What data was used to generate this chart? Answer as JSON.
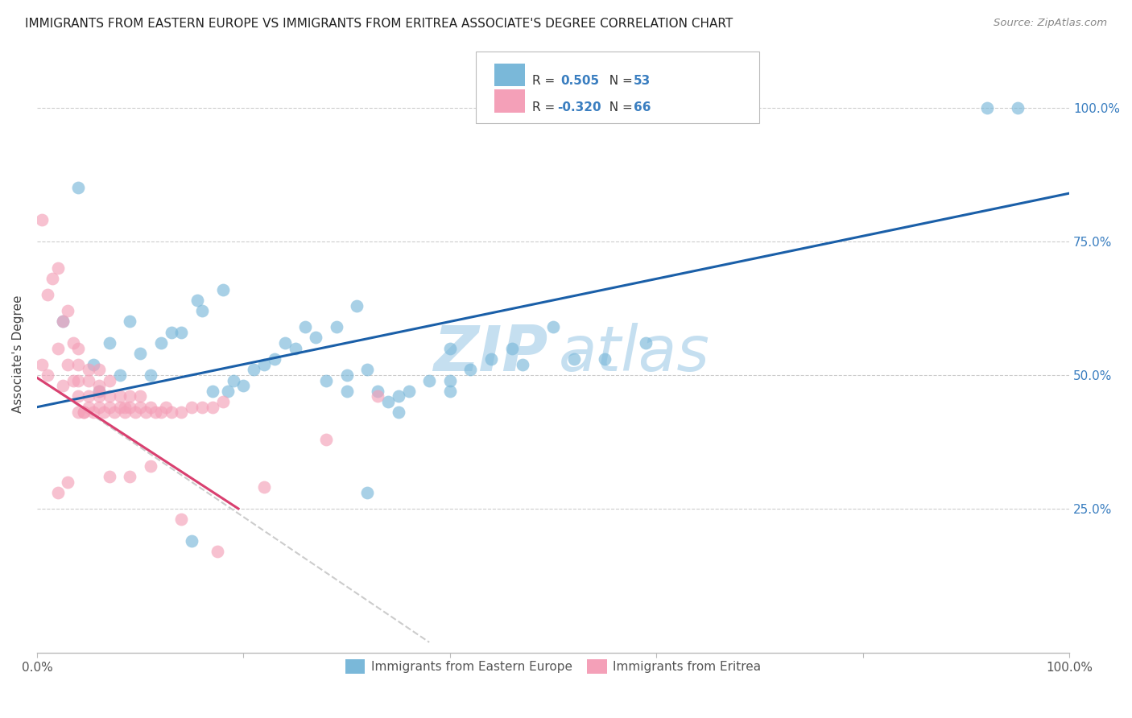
{
  "title": "IMMIGRANTS FROM EASTERN EUROPE VS IMMIGRANTS FROM ERITREA ASSOCIATE'S DEGREE CORRELATION CHART",
  "source": "Source: ZipAtlas.com",
  "ylabel": "Associate's Degree",
  "ytick_labels": [
    "25.0%",
    "50.0%",
    "75.0%",
    "100.0%"
  ],
  "ytick_positions": [
    0.25,
    0.5,
    0.75,
    1.0
  ],
  "legend_blue_label": "Immigrants from Eastern Europe",
  "legend_pink_label": "Immigrants from Eritrea",
  "blue_color": "#7ab8d9",
  "pink_color": "#f4a0b8",
  "blue_line_color": "#1a5fa8",
  "pink_line_color": "#d94070",
  "pink_dashed_color": "#cccccc",
  "blue_scatter_x": [
    0.92,
    0.95,
    0.025,
    0.04,
    0.055,
    0.07,
    0.09,
    0.11,
    0.13,
    0.155,
    0.06,
    0.08,
    0.1,
    0.12,
    0.14,
    0.16,
    0.18,
    0.2,
    0.22,
    0.24,
    0.26,
    0.17,
    0.19,
    0.21,
    0.23,
    0.25,
    0.27,
    0.29,
    0.31,
    0.28,
    0.3,
    0.32,
    0.34,
    0.33,
    0.35,
    0.36,
    0.38,
    0.4,
    0.42,
    0.44,
    0.46,
    0.5,
    0.32,
    0.4,
    0.55,
    0.59,
    0.185,
    0.3,
    0.35,
    0.4,
    0.47,
    0.52,
    0.15
  ],
  "blue_scatter_y": [
    1.0,
    1.0,
    0.6,
    0.85,
    0.52,
    0.56,
    0.6,
    0.5,
    0.58,
    0.64,
    0.47,
    0.5,
    0.54,
    0.56,
    0.58,
    0.62,
    0.66,
    0.48,
    0.52,
    0.56,
    0.59,
    0.47,
    0.49,
    0.51,
    0.53,
    0.55,
    0.57,
    0.59,
    0.63,
    0.49,
    0.47,
    0.51,
    0.45,
    0.47,
    0.43,
    0.47,
    0.49,
    0.49,
    0.51,
    0.53,
    0.55,
    0.59,
    0.28,
    0.55,
    0.53,
    0.56,
    0.47,
    0.5,
    0.46,
    0.47,
    0.52,
    0.53,
    0.19
  ],
  "pink_scatter_x": [
    0.005,
    0.01,
    0.015,
    0.02,
    0.02,
    0.025,
    0.03,
    0.03,
    0.035,
    0.04,
    0.04,
    0.04,
    0.04,
    0.04,
    0.045,
    0.05,
    0.05,
    0.05,
    0.05,
    0.055,
    0.06,
    0.06,
    0.06,
    0.06,
    0.065,
    0.07,
    0.07,
    0.07,
    0.075,
    0.08,
    0.08,
    0.085,
    0.09,
    0.09,
    0.095,
    0.1,
    0.1,
    0.105,
    0.11,
    0.115,
    0.12,
    0.125,
    0.13,
    0.14,
    0.15,
    0.16,
    0.17,
    0.18,
    0.02,
    0.03,
    0.07,
    0.09,
    0.11,
    0.14,
    0.175,
    0.22,
    0.28,
    0.33,
    0.005,
    0.01,
    0.025,
    0.035,
    0.045,
    0.06,
    0.085
  ],
  "pink_scatter_y": [
    0.79,
    0.65,
    0.68,
    0.55,
    0.7,
    0.6,
    0.62,
    0.52,
    0.56,
    0.43,
    0.46,
    0.49,
    0.52,
    0.55,
    0.43,
    0.44,
    0.46,
    0.49,
    0.51,
    0.43,
    0.44,
    0.46,
    0.48,
    0.51,
    0.43,
    0.44,
    0.46,
    0.49,
    0.43,
    0.44,
    0.46,
    0.43,
    0.44,
    0.46,
    0.43,
    0.44,
    0.46,
    0.43,
    0.44,
    0.43,
    0.43,
    0.44,
    0.43,
    0.43,
    0.44,
    0.44,
    0.44,
    0.45,
    0.28,
    0.3,
    0.31,
    0.31,
    0.33,
    0.23,
    0.17,
    0.29,
    0.38,
    0.46,
    0.52,
    0.5,
    0.48,
    0.49,
    0.43,
    0.47,
    0.44
  ],
  "blue_line_x": [
    0.0,
    1.0
  ],
  "blue_line_y": [
    0.44,
    0.84
  ],
  "pink_solid_line_x": [
    0.0,
    0.195
  ],
  "pink_solid_line_y": [
    0.495,
    0.25
  ],
  "pink_dashed_line_x": [
    0.0,
    0.38
  ],
  "pink_dashed_line_y": [
    0.495,
    0.0
  ],
  "xlim": [
    0.0,
    1.0
  ],
  "ylim": [
    -0.02,
    1.1
  ]
}
